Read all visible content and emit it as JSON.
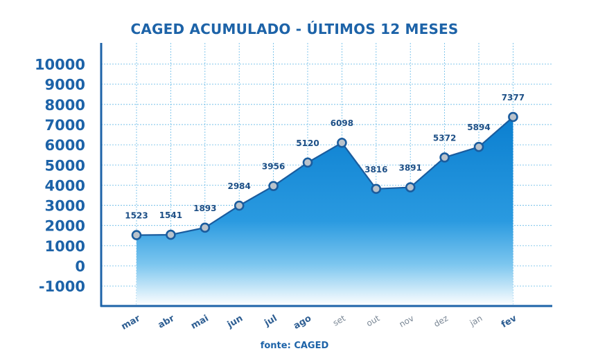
{
  "chart_data": {
    "type": "area",
    "title": "CAGED ACUMULADO - ÚLTIMOS 12 MESES",
    "source": "fonte: CAGED",
    "xlabel": "",
    "ylabel": "",
    "ylim": [
      -1000,
      10000
    ],
    "yticks": [
      10000,
      9000,
      8000,
      7000,
      6000,
      5000,
      4000,
      3000,
      2000,
      1000,
      0,
      -1000
    ],
    "categories": [
      "mar",
      "abr",
      "mai",
      "jun",
      "jul",
      "ago",
      "set",
      "out",
      "nov",
      "dez",
      "jan",
      "fev"
    ],
    "bold_categories": [
      "mar",
      "abr",
      "mai",
      "jun",
      "jul",
      "ago",
      "fev"
    ],
    "series": [
      {
        "values": [
          1523,
          1541,
          1893,
          2984,
          3956,
          5120,
          6098,
          3816,
          3891,
          5372,
          5894,
          7377
        ],
        "labels": [
          "1523",
          "1541",
          "1893",
          "2984",
          "3956",
          "5120",
          "6098",
          "3816",
          "3891",
          "5372",
          "5894",
          "7377"
        ]
      }
    ],
    "grid": true,
    "legend": "none",
    "colors": {
      "title": "#1d63a8",
      "axis": "#1d63a8",
      "line": "#1a5c9e",
      "fill_top": "#0b7fd0",
      "fill_bottom": "#ffffff",
      "grid": "#62b8e6",
      "marker_fill": "#b9c2cb",
      "marker_stroke": "#1a5c9e"
    }
  }
}
